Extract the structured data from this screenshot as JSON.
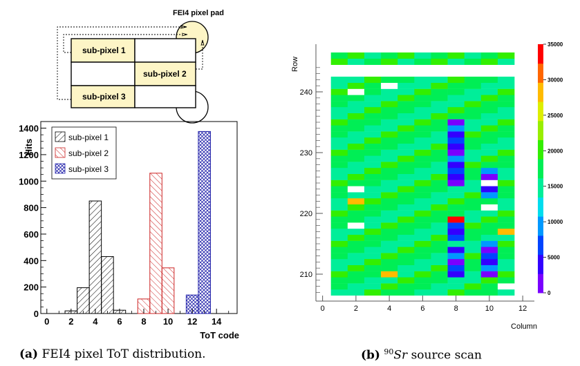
{
  "diagram": {
    "pad_label": "FEI4 pixel pad",
    "subpixels": [
      "sub-pixel 1",
      "sub-pixel 2",
      "sub-pixel 3"
    ]
  },
  "chart_data": [
    {
      "type": "bar",
      "ylabel": "Hits",
      "xlabel": "ToT code",
      "xlim": [
        -0.5,
        15.7
      ],
      "ylim": [
        0,
        1450
      ],
      "x_ticks": [
        0,
        2,
        4,
        6,
        8,
        10,
        12,
        14
      ],
      "y_ticks": [
        0,
        200,
        400,
        600,
        800,
        1000,
        1200,
        1400
      ],
      "legend_position": "top-left",
      "series": [
        {
          "name": "sub-pixel 1",
          "color": "#000000",
          "pattern": "hatch-right",
          "bins": [
            [
              1,
              0
            ],
            [
              2,
              20
            ],
            [
              3,
              195
            ],
            [
              4,
              850
            ],
            [
              5,
              430
            ],
            [
              6,
              25
            ]
          ]
        },
        {
          "name": "sub-pixel 2",
          "color": "#cc2222",
          "pattern": "hatch-left",
          "bins": [
            [
              7,
              0
            ],
            [
              8,
              110
            ],
            [
              9,
              1060
            ],
            [
              10,
              345
            ]
          ]
        },
        {
          "name": "sub-pixel 3",
          "color": "#2222aa",
          "pattern": "crosshatch",
          "bins": [
            [
              11,
              0
            ],
            [
              12,
              140
            ],
            [
              13,
              1375
            ]
          ]
        }
      ]
    },
    {
      "type": "heatmap",
      "ylabel": "Row",
      "xlabel": "Column",
      "x_ticks": [
        0,
        2,
        4,
        6,
        8,
        10,
        12
      ],
      "y_ticks": [
        210,
        220,
        230,
        240
      ],
      "colorbar_ticks": [
        0,
        5000,
        10000,
        15000,
        20000,
        25000,
        30000,
        35000
      ],
      "colorbar_range": [
        0,
        35000
      ],
      "colormap": [
        "#7a00ff",
        "#3300ff",
        "#0044ff",
        "#0099ff",
        "#00ddee",
        "#00ee99",
        "#00ee55",
        "#33ee00",
        "#99ee00",
        "#ddee00",
        "#ffbb00",
        "#ff6600",
        "#ff0000"
      ]
    }
  ],
  "captions": {
    "a_label": "(a)",
    "a_text": "FEI4 pixel ToT distribution.",
    "b_label": "(b)",
    "b_sup": "90",
    "b_italic": "Sr",
    "b_text": "source scan"
  }
}
